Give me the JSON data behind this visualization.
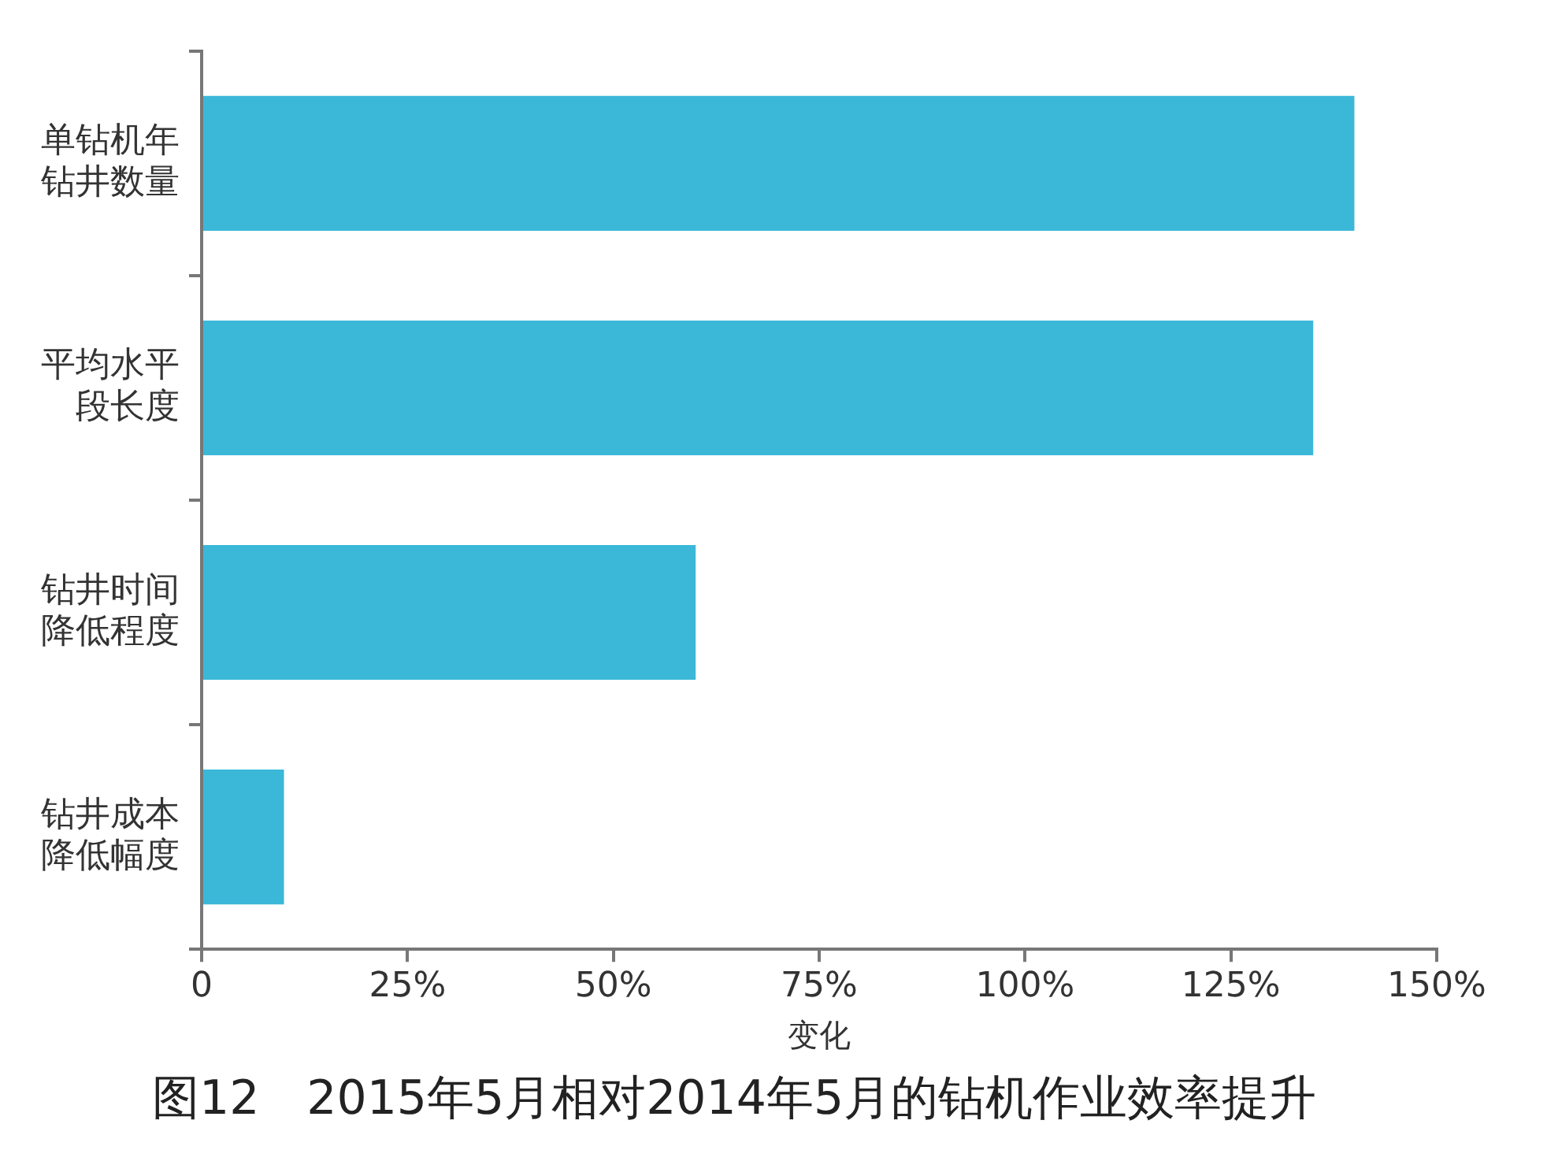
{
  "chart_data": {
    "type": "bar",
    "orientation": "horizontal",
    "title": "图12　2015年5月相对2014年5月的钻机作业效率提升",
    "categories": [
      "单钻机年钻井数量",
      "平均水平段长度",
      "钻井时间降低程度",
      "钻井成本降低幅度"
    ],
    "values": [
      140,
      135,
      60,
      10
    ],
    "color": "#3bb8d8",
    "xlabel": "变化",
    "xlim": [
      0,
      150
    ],
    "xticks": [
      0,
      {
        "value": 25,
        "label": "25%"
      },
      {
        "value": 50,
        "label": "50%"
      },
      {
        "value": 75,
        "label": "75%"
      },
      {
        "value": 100,
        "label": "100%"
      },
      {
        "value": 125,
        "label": "125%"
      },
      {
        "value": 150,
        "label": "150%"
      }
    ],
    "grid": false,
    "legend": false
  }
}
